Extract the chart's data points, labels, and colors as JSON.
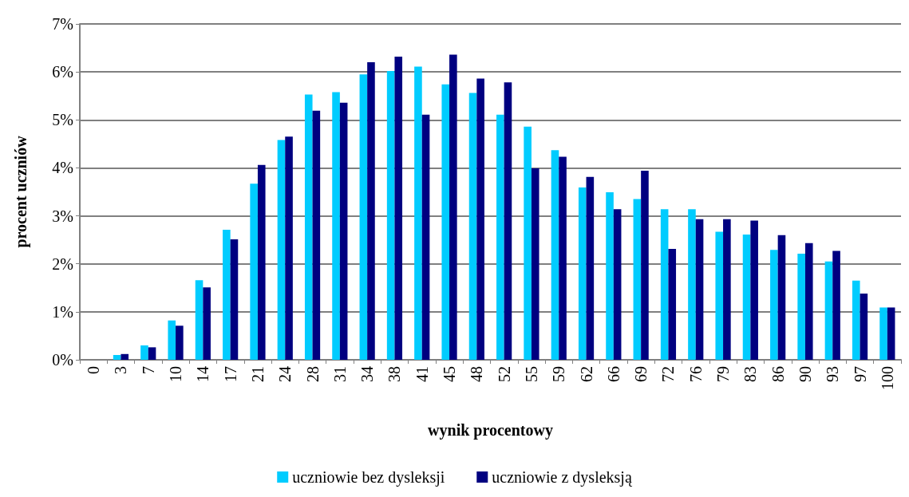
{
  "chart_data": {
    "type": "bar",
    "xlabel": "wynik procentowy",
    "ylabel": "procent uczniów",
    "categories": [
      "0",
      "3",
      "7",
      "10",
      "14",
      "17",
      "21",
      "24",
      "28",
      "31",
      "34",
      "38",
      "41",
      "45",
      "48",
      "52",
      "55",
      "59",
      "62",
      "66",
      "69",
      "72",
      "76",
      "79",
      "83",
      "86",
      "90",
      "93",
      "97",
      "100"
    ],
    "series": [
      {
        "name": "uczniowie bez dysleksji",
        "color": "#00ccff",
        "values": [
          0,
          0.1,
          0.3,
          0.82,
          1.66,
          2.71,
          3.67,
          4.58,
          5.53,
          5.58,
          5.95,
          6.02,
          6.11,
          5.74,
          5.56,
          5.11,
          4.86,
          4.37,
          3.59,
          3.49,
          3.35,
          3.14,
          3.14,
          2.67,
          2.61,
          2.29,
          2.21,
          2.05,
          1.65,
          1.09
        ]
      },
      {
        "name": "uczniowie z dysleksją",
        "color": "#000080",
        "values": [
          0,
          0.12,
          0.26,
          0.71,
          1.51,
          2.51,
          4.06,
          4.65,
          5.19,
          5.36,
          6.2,
          6.32,
          5.11,
          6.36,
          5.86,
          5.78,
          3.99,
          4.23,
          3.81,
          3.14,
          3.94,
          2.31,
          2.93,
          2.93,
          2.9,
          2.6,
          2.43,
          2.27,
          1.38,
          1.09
        ]
      }
    ],
    "ylim": [
      0,
      7
    ],
    "yticks": [
      {
        "value": 0,
        "label": "0%"
      },
      {
        "value": 1,
        "label": "1%"
      },
      {
        "value": 2,
        "label": "2%"
      },
      {
        "value": 3,
        "label": "3%"
      },
      {
        "value": 4,
        "label": "4%"
      },
      {
        "value": 5,
        "label": "5%"
      },
      {
        "value": 6,
        "label": "6%"
      },
      {
        "value": 7,
        "label": "7%"
      }
    ],
    "grid": "y",
    "legend": "bottom"
  }
}
